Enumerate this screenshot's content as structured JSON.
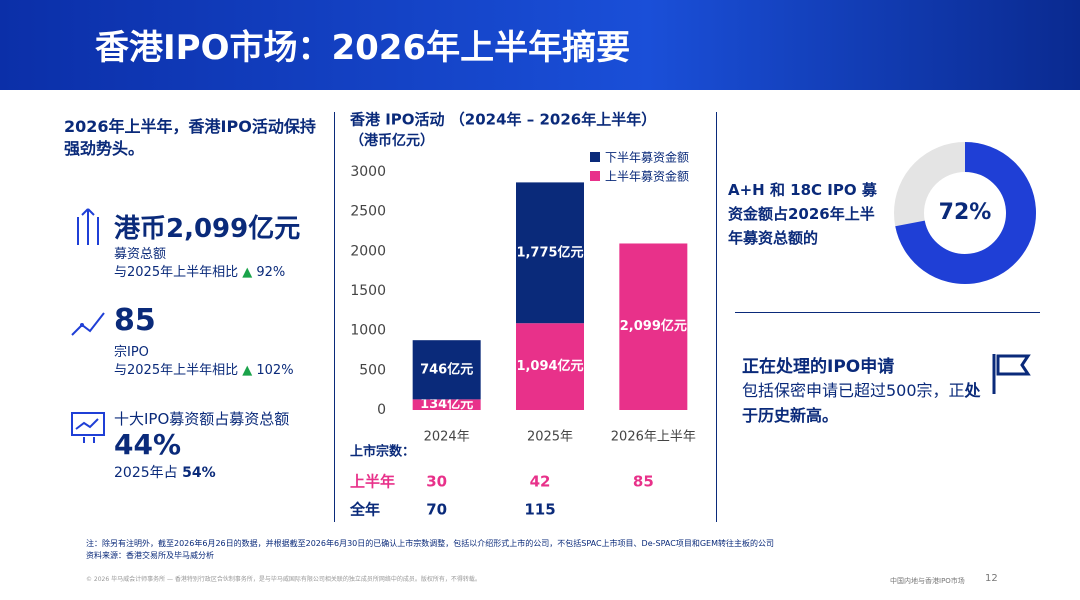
{
  "header": {
    "title": "香港IPO市场：2026年上半年摘要"
  },
  "left": {
    "intro": "2026年上半年，香港IPO活动保持强劲势头。",
    "stats": [
      {
        "value": "港币2,099亿元",
        "label": "募资总额",
        "compare": "与2025年上半年相比",
        "change": "92%"
      },
      {
        "value": "85",
        "label": "宗IPO",
        "compare": "与2025年上半年相比",
        "change": "102%"
      },
      {
        "label": "十大IPO募资额占募资总额",
        "value": "44%",
        "compare": "2025年占",
        "change": "54%"
      }
    ]
  },
  "chart_data": [
    {
      "type": "bar",
      "stacked": true,
      "title": "香港 IPO活动 （2024年 – 2026年上半年）",
      "subtitle": "（港币亿元）",
      "categories": [
        "2024年",
        "2025年",
        "2026年上半年"
      ],
      "series": [
        {
          "name": "上半年募资金额",
          "color": "#e8318a",
          "values": [
            134,
            1094,
            2099
          ],
          "value_labels": [
            "134亿元",
            "1,094亿元",
            "2,099亿元"
          ]
        },
        {
          "name": "下半年募资金额",
          "color": "#0a2a7a",
          "values": [
            746,
            1775,
            null
          ],
          "value_labels": [
            "746亿元",
            "1,775亿元",
            null
          ]
        }
      ],
      "ylim": [
        0,
        3000
      ],
      "yticks": [
        0,
        500,
        1000,
        1500,
        2000,
        2500,
        3000
      ],
      "grid": false,
      "legend": "top-right"
    },
    {
      "type": "pie",
      "values": [
        72
      ],
      "value_labels": [
        "72%"
      ],
      "color": "#1f3fd6",
      "rest_color": "#e4e4e4"
    }
  ],
  "listings": {
    "label": "上市宗数：",
    "rows": [
      {
        "name": "上半年",
        "values": [
          30,
          42,
          85
        ]
      },
      {
        "name": "全年",
        "values": [
          70,
          115,
          null
        ]
      }
    ]
  },
  "right": {
    "donut_text": "A+H 和 18C IPO 募资金额占2026年上半年募资总额的",
    "pending_title": "正在处理的IPO申请",
    "pending_text": "包括保密申请已超过500宗，正",
    "pending_bold": "处于历史新高。"
  },
  "footer": {
    "note": "注：除另有注明外，截至2026年6月26日的数据，并根据截至2026年6月30日的已确认上市宗数调整，包括以介绍形式上市的公司，不包括SPAC上市项目、De-SPAC项目和GEM转往主板的公司",
    "source": "资料来源：香港交易所及毕马威分析",
    "legal": "© 2026 毕马威会计师事务所 — 香港特别行政区合伙制事务所，是与毕马威国际有限公司相关联的独立成员所网络中的成员。版权所有，不得转载。",
    "section": "中国内地与香港IPO市场",
    "page": "12"
  }
}
